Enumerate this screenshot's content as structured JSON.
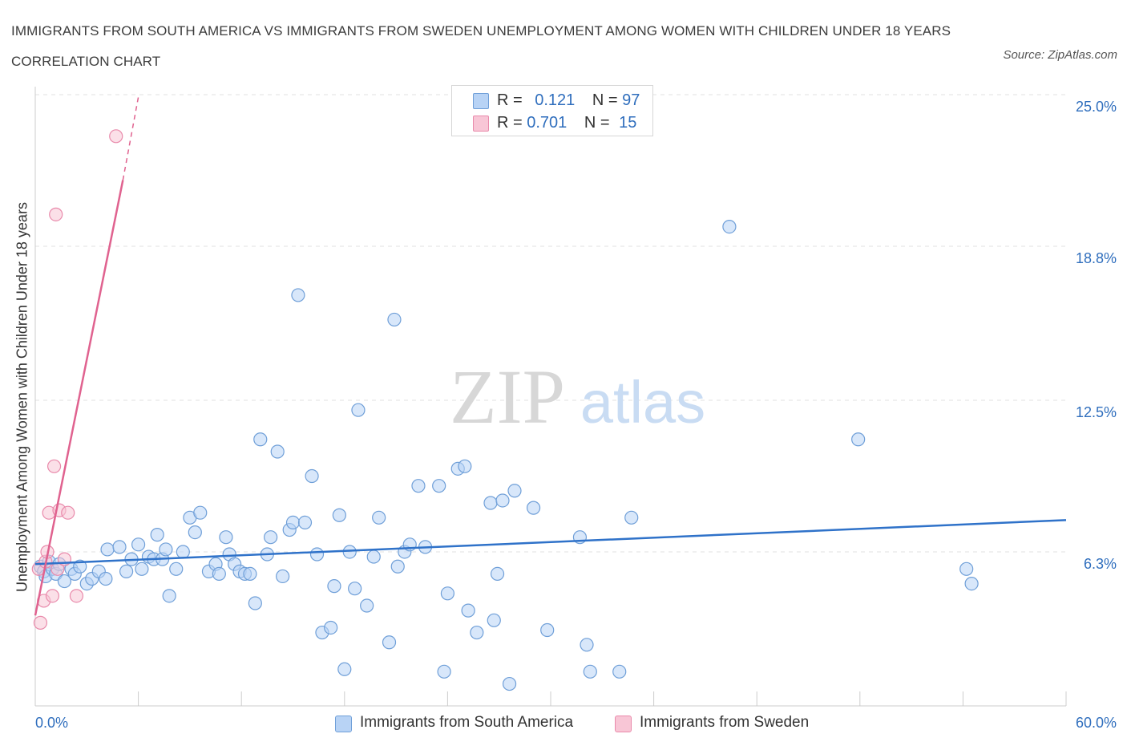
{
  "title": "IMMIGRANTS FROM SOUTH AMERICA VS IMMIGRANTS FROM SWEDEN UNEMPLOYMENT AMONG WOMEN WITH CHILDREN UNDER 18 YEARS CORRELATION CHART",
  "source": "Source: ZipAtlas.com",
  "watermark": {
    "zip": "ZIP",
    "atlas": "atlas"
  },
  "legend": {
    "r_label": "R =",
    "n_label": "N =",
    "south_america": {
      "r": "0.121",
      "n": "97"
    },
    "sweden": {
      "r": "0.701",
      "n": "15"
    }
  },
  "colors": {
    "south_america_fill": "#b8d3f5",
    "south_america_stroke": "#6f9fd8",
    "south_america_line": "#2f72c9",
    "sweden_fill": "#f8c6d6",
    "sweden_stroke": "#e98aab",
    "sweden_line": "#e0628f",
    "tick_text": "#2f6ebd"
  },
  "chart_data": {
    "type": "scatter",
    "title": "IMMIGRANTS FROM SOUTH AMERICA VS IMMIGRANTS FROM SWEDEN UNEMPLOYMENT AMONG WOMEN WITH CHILDREN UNDER 18 YEARS CORRELATION CHART",
    "xlabel": "",
    "ylabel": "Unemployment Among Women with Children Under 18 years",
    "xlim": [
      0,
      60
    ],
    "ylim": [
      0,
      25
    ],
    "y_ticks": [
      {
        "value": 6.3,
        "label": "6.3%"
      },
      {
        "value": 12.5,
        "label": "12.5%"
      },
      {
        "value": 18.8,
        "label": "18.8%"
      },
      {
        "value": 25.0,
        "label": "25.0%"
      }
    ],
    "x_ticks": [
      {
        "value": 0,
        "label": "0.0%"
      },
      {
        "value": 60,
        "label": "60.0%"
      }
    ],
    "grid": true,
    "legend_position": "top-center",
    "series": [
      {
        "name": "Immigrants from South America",
        "r": 0.121,
        "n": 97,
        "trend": [
          [
            0,
            5.8
          ],
          [
            60,
            7.6
          ]
        ],
        "points": [
          [
            0.3,
            5.7
          ],
          [
            0.5,
            5.5
          ],
          [
            0.6,
            5.3
          ],
          [
            0.8,
            5.9
          ],
          [
            1.0,
            5.6
          ],
          [
            1.2,
            5.4
          ],
          [
            1.4,
            5.8
          ],
          [
            1.7,
            5.1
          ],
          [
            2.1,
            5.6
          ],
          [
            2.3,
            5.4
          ],
          [
            2.6,
            5.7
          ],
          [
            3.0,
            5.0
          ],
          [
            3.3,
            5.2
          ],
          [
            3.7,
            5.5
          ],
          [
            4.1,
            5.2
          ],
          [
            4.2,
            6.4
          ],
          [
            4.9,
            6.5
          ],
          [
            5.3,
            5.5
          ],
          [
            5.6,
            6.0
          ],
          [
            6.0,
            6.6
          ],
          [
            6.2,
            5.6
          ],
          [
            6.6,
            6.1
          ],
          [
            6.9,
            6.0
          ],
          [
            7.1,
            7.0
          ],
          [
            7.4,
            6.0
          ],
          [
            7.6,
            6.4
          ],
          [
            7.8,
            4.5
          ],
          [
            8.2,
            5.6
          ],
          [
            8.6,
            6.3
          ],
          [
            9.0,
            7.7
          ],
          [
            9.3,
            7.1
          ],
          [
            9.6,
            7.9
          ],
          [
            10.1,
            5.5
          ],
          [
            10.5,
            5.8
          ],
          [
            10.7,
            5.4
          ],
          [
            11.1,
            6.9
          ],
          [
            11.3,
            6.2
          ],
          [
            11.6,
            5.8
          ],
          [
            11.9,
            5.5
          ],
          [
            12.2,
            5.4
          ],
          [
            12.5,
            5.4
          ],
          [
            12.8,
            4.2
          ],
          [
            13.1,
            10.9
          ],
          [
            13.5,
            6.2
          ],
          [
            13.7,
            6.9
          ],
          [
            14.1,
            10.4
          ],
          [
            14.4,
            5.3
          ],
          [
            14.8,
            7.2
          ],
          [
            15.0,
            7.5
          ],
          [
            15.3,
            16.8
          ],
          [
            15.7,
            7.5
          ],
          [
            16.1,
            9.4
          ],
          [
            16.4,
            6.2
          ],
          [
            16.7,
            3.0
          ],
          [
            17.2,
            3.2
          ],
          [
            17.4,
            4.9
          ],
          [
            17.7,
            7.8
          ],
          [
            18.0,
            1.5
          ],
          [
            18.3,
            6.3
          ],
          [
            18.6,
            4.8
          ],
          [
            18.8,
            12.1
          ],
          [
            19.3,
            4.1
          ],
          [
            19.7,
            6.1
          ],
          [
            20.0,
            7.7
          ],
          [
            20.6,
            2.6
          ],
          [
            20.9,
            15.8
          ],
          [
            21.1,
            5.7
          ],
          [
            21.5,
            6.3
          ],
          [
            21.8,
            6.6
          ],
          [
            22.3,
            9.0
          ],
          [
            22.7,
            6.5
          ],
          [
            23.5,
            9.0
          ],
          [
            23.8,
            1.4
          ],
          [
            24.0,
            4.6
          ],
          [
            24.6,
            9.7
          ],
          [
            25.0,
            9.8
          ],
          [
            25.2,
            3.9
          ],
          [
            25.7,
            3.0
          ],
          [
            26.5,
            8.3
          ],
          [
            26.7,
            3.5
          ],
          [
            26.9,
            5.4
          ],
          [
            27.2,
            8.4
          ],
          [
            27.6,
            0.9
          ],
          [
            27.9,
            8.8
          ],
          [
            29.0,
            8.1
          ],
          [
            29.8,
            3.1
          ],
          [
            31.7,
            6.9
          ],
          [
            32.1,
            2.5
          ],
          [
            32.3,
            1.4
          ],
          [
            34.0,
            1.4
          ],
          [
            34.7,
            7.7
          ],
          [
            40.4,
            19.6
          ],
          [
            47.9,
            10.9
          ],
          [
            54.2,
            5.6
          ],
          [
            54.5,
            5.0
          ]
        ]
      },
      {
        "name": "Immigrants from Sweden",
        "r": 0.701,
        "n": 15,
        "trend": [
          [
            0,
            3.7
          ],
          [
            5.1,
            21.5
          ]
        ],
        "trend_dashed": [
          [
            5.1,
            21.5
          ],
          [
            6.0,
            24.9
          ]
        ],
        "points": [
          [
            0.2,
            5.6
          ],
          [
            0.3,
            3.4
          ],
          [
            0.5,
            4.3
          ],
          [
            0.6,
            5.9
          ],
          [
            0.7,
            6.3
          ],
          [
            0.8,
            7.9
          ],
          [
            1.0,
            4.5
          ],
          [
            1.1,
            9.8
          ],
          [
            1.2,
            20.1
          ],
          [
            1.3,
            5.6
          ],
          [
            1.4,
            8.0
          ],
          [
            1.7,
            6.0
          ],
          [
            1.9,
            7.9
          ],
          [
            2.4,
            4.5
          ],
          [
            4.7,
            23.3
          ]
        ]
      }
    ]
  }
}
